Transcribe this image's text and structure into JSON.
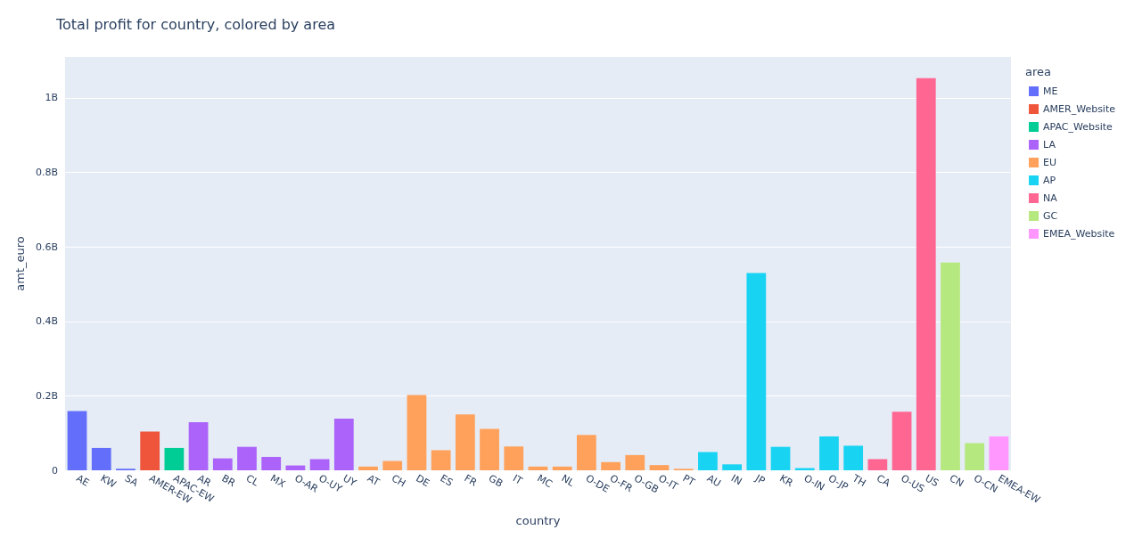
{
  "chart_data": {
    "type": "bar",
    "title": "Total profit for country, colored by area",
    "xlabel": "country",
    "ylabel": "amt_euro",
    "legend_title": "area",
    "categories": [
      "AE",
      "KW",
      "SA",
      "AMER-EW",
      "APAC-EW",
      "AR",
      "BR",
      "CL",
      "MX",
      "O-AR",
      "O-UY",
      "UY",
      "AT",
      "CH",
      "DE",
      "ES",
      "FR",
      "GB",
      "IT",
      "MC",
      "NL",
      "O-DE",
      "O-FR",
      "O-GB",
      "O-IT",
      "PT",
      "AU",
      "IN",
      "JP",
      "KR",
      "O-IN",
      "O-JP",
      "TH",
      "CA",
      "O-US",
      "US",
      "CN",
      "O-CN",
      "EMEA-EW"
    ],
    "series": [
      {
        "name": "ME",
        "color": "#636efa",
        "values": [
          0.159,
          0.06,
          0.004,
          null,
          null,
          null,
          null,
          null,
          null,
          null,
          null,
          null,
          null,
          null,
          null,
          null,
          null,
          null,
          null,
          null,
          null,
          null,
          null,
          null,
          null,
          null,
          null,
          null,
          null,
          null,
          null,
          null,
          null,
          null,
          null,
          null,
          null,
          null,
          null
        ]
      },
      {
        "name": "AMER_Website",
        "color": "#ef553b",
        "values": [
          null,
          null,
          null,
          0.104,
          null,
          null,
          null,
          null,
          null,
          null,
          null,
          null,
          null,
          null,
          null,
          null,
          null,
          null,
          null,
          null,
          null,
          null,
          null,
          null,
          null,
          null,
          null,
          null,
          null,
          null,
          null,
          null,
          null,
          null,
          null,
          null,
          null,
          null,
          null
        ]
      },
      {
        "name": "APAC_Website",
        "color": "#00cc96",
        "values": [
          null,
          null,
          null,
          null,
          0.06,
          null,
          null,
          null,
          null,
          null,
          null,
          null,
          null,
          null,
          null,
          null,
          null,
          null,
          null,
          null,
          null,
          null,
          null,
          null,
          null,
          null,
          null,
          null,
          null,
          null,
          null,
          null,
          null,
          null,
          null,
          null,
          null,
          null,
          null
        ]
      },
      {
        "name": "LA",
        "color": "#ab63fa",
        "values": [
          null,
          null,
          null,
          null,
          null,
          0.129,
          0.032,
          0.063,
          0.036,
          0.013,
          0.03,
          0.139,
          null,
          null,
          null,
          null,
          null,
          null,
          null,
          null,
          null,
          null,
          null,
          null,
          null,
          null,
          null,
          null,
          null,
          null,
          null,
          null,
          null,
          null,
          null,
          null,
          null,
          null,
          null
        ]
      },
      {
        "name": "EU",
        "color": "#ffa15a",
        "values": [
          null,
          null,
          null,
          null,
          null,
          null,
          null,
          null,
          null,
          null,
          null,
          null,
          0.01,
          0.025,
          0.202,
          0.054,
          0.15,
          0.111,
          0.064,
          0.01,
          0.01,
          0.095,
          0.022,
          0.041,
          0.014,
          0.004,
          null,
          null,
          null,
          null,
          null,
          null,
          null,
          null,
          null,
          null,
          null,
          null,
          null
        ]
      },
      {
        "name": "AP",
        "color": "#19d3f3",
        "values": [
          null,
          null,
          null,
          null,
          null,
          null,
          null,
          null,
          null,
          null,
          null,
          null,
          null,
          null,
          null,
          null,
          null,
          null,
          null,
          null,
          null,
          null,
          null,
          null,
          null,
          null,
          0.049,
          0.016,
          0.53,
          0.063,
          0.006,
          0.091,
          0.066,
          null,
          null,
          null,
          null,
          null,
          null
        ]
      },
      {
        "name": "NA",
        "color": "#ff6692",
        "values": [
          null,
          null,
          null,
          null,
          null,
          null,
          null,
          null,
          null,
          null,
          null,
          null,
          null,
          null,
          null,
          null,
          null,
          null,
          null,
          null,
          null,
          null,
          null,
          null,
          null,
          null,
          null,
          null,
          null,
          null,
          null,
          null,
          null,
          0.03,
          0.157,
          1.053,
          null,
          null,
          null
        ]
      },
      {
        "name": "GC",
        "color": "#b6e880",
        "values": [
          null,
          null,
          null,
          null,
          null,
          null,
          null,
          null,
          null,
          null,
          null,
          null,
          null,
          null,
          null,
          null,
          null,
          null,
          null,
          null,
          null,
          null,
          null,
          null,
          null,
          null,
          null,
          null,
          null,
          null,
          null,
          null,
          null,
          null,
          null,
          null,
          0.558,
          0.073,
          null
        ]
      },
      {
        "name": "EMEA_Website",
        "color": "#ff97ff",
        "values": [
          null,
          null,
          null,
          null,
          null,
          null,
          null,
          null,
          null,
          null,
          null,
          null,
          null,
          null,
          null,
          null,
          null,
          null,
          null,
          null,
          null,
          null,
          null,
          null,
          null,
          null,
          null,
          null,
          null,
          null,
          null,
          null,
          null,
          null,
          null,
          null,
          null,
          null,
          0.091
        ]
      }
    ],
    "ylim": [
      0,
      1.11
    ],
    "yticks": [
      0,
      {
        "value": 0.2,
        "label": "0.2B"
      },
      {
        "value": 0.4,
        "label": "0.4B"
      },
      {
        "value": 0.6,
        "label": "0.6B"
      },
      {
        "value": 0.8,
        "label": "0.8B"
      },
      {
        "value": 1,
        "label": "1B"
      }
    ],
    "grid": "y",
    "legend": "right"
  }
}
